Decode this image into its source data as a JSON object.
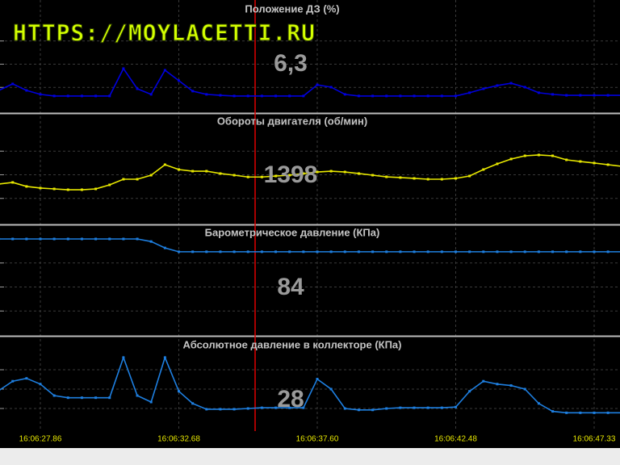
{
  "watermark": "HTTPS://MOYLACETTI.RU",
  "chart_data": [
    {
      "type": "line",
      "title": "Положение ДЗ  (%)",
      "readout": "6,3",
      "color": "#0000dd",
      "ylim": [
        0,
        40
      ],
      "values": [
        8.7,
        11.5,
        8.7,
        7.0,
        6.3,
        6.3,
        6.3,
        6.3,
        6.3,
        18.1,
        9.4,
        7.0,
        17.4,
        12.9,
        8.4,
        7.0,
        6.6,
        6.3,
        6.3,
        6.3,
        6.3,
        6.3,
        6.3,
        11.1,
        10.1,
        7.0,
        6.3,
        6.3,
        6.3,
        6.3,
        6.3,
        6.3,
        6.3,
        6.3,
        7.7,
        9.4,
        10.8,
        11.8,
        10.1,
        7.7,
        7.0,
        6.6,
        6.6,
        6.6,
        6.6,
        6.6
      ]
    },
    {
      "type": "line",
      "title": "Обороты двигателя  (об/мин)",
      "readout": "1398",
      "color": "#e8e800",
      "ylim": [
        850,
        2000
      ],
      "values": [
        1312,
        1332,
        1283,
        1263,
        1253,
        1243,
        1243,
        1253,
        1302,
        1371,
        1371,
        1420,
        1548,
        1489,
        1469,
        1469,
        1440,
        1420,
        1398,
        1398,
        1410,
        1420,
        1440,
        1459,
        1469,
        1459,
        1440,
        1420,
        1400,
        1391,
        1381,
        1371,
        1371,
        1381,
        1410,
        1489,
        1558,
        1617,
        1656,
        1666,
        1656,
        1607,
        1587,
        1568,
        1548,
        1528
      ]
    },
    {
      "type": "line",
      "title": "Барометрическое давление  (КПа)",
      "readout": "84",
      "color": "#1e7fe0",
      "ylim": [
        77.5,
        85
      ],
      "values": [
        85,
        85,
        85,
        85,
        85,
        85,
        85,
        85,
        85,
        85,
        85,
        84.8,
        84.3,
        84,
        84,
        84,
        84,
        84,
        84,
        84,
        84,
        84,
        84,
        84,
        84,
        84,
        84,
        84,
        84,
        84,
        84,
        84,
        84,
        84,
        84,
        84,
        84,
        84,
        84,
        84,
        84,
        84,
        84,
        84,
        84,
        84
      ]
    },
    {
      "type": "line",
      "title": "Абсолютное давление в коллекторе  (КПа)",
      "readout": "28",
      "color": "#1e7fe0",
      "ylim": [
        0,
        108
      ],
      "values": [
        52,
        65,
        69,
        61,
        45,
        42,
        42,
        42,
        42,
        98,
        45,
        36,
        98,
        51,
        34,
        26,
        26,
        26,
        27,
        28,
        28,
        28,
        28,
        68,
        54,
        27,
        25,
        25,
        27,
        28,
        28,
        28,
        28,
        29,
        51,
        65,
        61,
        59,
        54,
        34,
        23,
        21,
        21,
        21,
        21,
        21
      ],
      "categories": [
        null,
        null,
        null,
        "16:06:27.86",
        null,
        null,
        null,
        null,
        null,
        null,
        null,
        null,
        null,
        "16:06:32.68",
        null,
        null,
        null,
        null,
        null,
        null,
        null,
        null,
        null,
        "16:06:37.60",
        null,
        null,
        null,
        null,
        null,
        null,
        null,
        null,
        null,
        "16:06:42.48",
        null,
        null,
        null,
        null,
        null,
        null,
        null,
        null,
        null,
        "16:06:47.33",
        null,
        null
      ]
    }
  ]
}
